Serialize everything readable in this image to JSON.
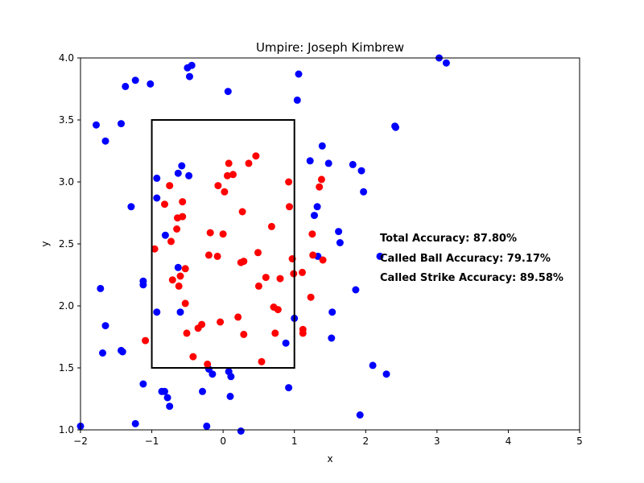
{
  "chart_data": {
    "type": "scatter",
    "title": "Umpire: Joseph Kimbrew",
    "xlabel": "x",
    "ylabel": "y",
    "xlim": [
      -2,
      5
    ],
    "ylim": [
      1.0,
      4.0
    ],
    "x_ticks": [
      "−2",
      "−1",
      "0",
      "1",
      "2",
      "3",
      "4",
      "5"
    ],
    "y_ticks": [
      "1.0",
      "1.5",
      "2.0",
      "2.5",
      "3.0",
      "3.5",
      "4.0"
    ],
    "grid": false,
    "strike_zone": {
      "x": [
        -1,
        1
      ],
      "y": [
        1.5,
        3.5
      ],
      "color": "#000000"
    },
    "annotations": [
      "Total Accuracy: 87.80%",
      "Called Ball Accuracy: 79.17%",
      "Called Strike Accuracy: 89.58%"
    ],
    "series": [
      {
        "color": "#0000ff",
        "points": [
          [
            -2.0,
            1.03
          ],
          [
            -1.78,
            3.46
          ],
          [
            -1.72,
            2.14
          ],
          [
            -1.69,
            1.62
          ],
          [
            -1.65,
            3.33
          ],
          [
            -1.65,
            1.84
          ],
          [
            -1.43,
            3.47
          ],
          [
            -1.43,
            1.64
          ],
          [
            -1.41,
            1.63
          ],
          [
            -1.37,
            3.77
          ],
          [
            -1.29,
            2.8
          ],
          [
            -1.23,
            3.82
          ],
          [
            -1.23,
            1.05
          ],
          [
            -1.12,
            2.2
          ],
          [
            -1.12,
            2.17
          ],
          [
            -1.12,
            1.37
          ],
          [
            -1.02,
            3.79
          ],
          [
            -0.93,
            3.03
          ],
          [
            -0.93,
            2.87
          ],
          [
            -0.93,
            1.95
          ],
          [
            -0.86,
            1.31
          ],
          [
            -0.82,
            1.31
          ],
          [
            -0.81,
            2.57
          ],
          [
            -0.78,
            1.26
          ],
          [
            -0.75,
            1.19
          ],
          [
            -0.63,
            3.07
          ],
          [
            -0.63,
            2.31
          ],
          [
            -0.6,
            1.95
          ],
          [
            -0.58,
            3.13
          ],
          [
            -0.5,
            3.92
          ],
          [
            -0.48,
            3.05
          ],
          [
            -0.47,
            3.85
          ],
          [
            -0.44,
            3.94
          ],
          [
            -0.29,
            1.31
          ],
          [
            -0.23,
            1.03
          ],
          [
            -0.2,
            1.49
          ],
          [
            -0.15,
            1.45
          ],
          [
            0.07,
            3.73
          ],
          [
            0.08,
            1.47
          ],
          [
            0.1,
            1.27
          ],
          [
            0.11,
            1.43
          ],
          [
            0.25,
            0.99
          ],
          [
            0.88,
            1.7
          ],
          [
            0.92,
            1.34
          ],
          [
            1.0,
            1.9
          ],
          [
            1.04,
            3.66
          ],
          [
            1.06,
            3.87
          ],
          [
            1.22,
            3.17
          ],
          [
            1.28,
            2.73
          ],
          [
            1.32,
            2.8
          ],
          [
            1.33,
            2.4
          ],
          [
            1.39,
            3.29
          ],
          [
            1.48,
            3.15
          ],
          [
            1.52,
            1.74
          ],
          [
            1.53,
            1.95
          ],
          [
            1.62,
            2.6
          ],
          [
            1.64,
            2.51
          ],
          [
            1.82,
            3.14
          ],
          [
            1.86,
            2.13
          ],
          [
            1.92,
            1.12
          ],
          [
            1.94,
            3.09
          ],
          [
            1.97,
            2.92
          ],
          [
            2.1,
            1.52
          ],
          [
            2.2,
            2.4
          ],
          [
            2.29,
            1.45
          ],
          [
            2.41,
            3.45
          ],
          [
            2.42,
            3.44
          ],
          [
            3.03,
            4.0
          ],
          [
            3.13,
            3.96
          ]
        ]
      },
      {
        "color": "#ff0000",
        "points": [
          [
            -1.09,
            1.72
          ],
          [
            -0.96,
            2.46
          ],
          [
            -0.82,
            2.82
          ],
          [
            -0.75,
            2.97
          ],
          [
            -0.73,
            2.52
          ],
          [
            -0.71,
            2.21
          ],
          [
            -0.65,
            2.62
          ],
          [
            -0.64,
            2.71
          ],
          [
            -0.62,
            2.16
          ],
          [
            -0.6,
            2.24
          ],
          [
            -0.57,
            2.72
          ],
          [
            -0.57,
            2.84
          ],
          [
            -0.53,
            2.02
          ],
          [
            -0.53,
            2.3
          ],
          [
            -0.51,
            1.78
          ],
          [
            -0.42,
            1.59
          ],
          [
            -0.35,
            1.82
          ],
          [
            -0.3,
            1.85
          ],
          [
            -0.22,
            1.53
          ],
          [
            -0.2,
            2.41
          ],
          [
            -0.18,
            2.59
          ],
          [
            -0.08,
            2.4
          ],
          [
            -0.07,
            2.97
          ],
          [
            -0.04,
            1.87
          ],
          [
            0.0,
            2.58
          ],
          [
            0.02,
            2.92
          ],
          [
            0.06,
            3.05
          ],
          [
            0.08,
            3.15
          ],
          [
            0.14,
            3.06
          ],
          [
            0.21,
            1.91
          ],
          [
            0.25,
            2.35
          ],
          [
            0.27,
            2.76
          ],
          [
            0.29,
            2.36
          ],
          [
            0.29,
            1.77
          ],
          [
            0.36,
            3.15
          ],
          [
            0.46,
            3.21
          ],
          [
            0.49,
            2.43
          ],
          [
            0.5,
            2.16
          ],
          [
            0.54,
            1.55
          ],
          [
            0.6,
            2.23
          ],
          [
            0.68,
            2.64
          ],
          [
            0.71,
            1.99
          ],
          [
            0.73,
            1.78
          ],
          [
            0.77,
            1.97
          ],
          [
            0.8,
            2.22
          ],
          [
            0.92,
            3.0
          ],
          [
            0.93,
            2.8
          ],
          [
            0.97,
            2.38
          ],
          [
            0.99,
            2.26
          ],
          [
            1.11,
            2.27
          ],
          [
            1.12,
            1.81
          ],
          [
            1.12,
            1.78
          ],
          [
            1.23,
            2.07
          ],
          [
            1.25,
            2.58
          ],
          [
            1.26,
            2.41
          ],
          [
            1.35,
            2.96
          ],
          [
            1.38,
            3.02
          ],
          [
            1.4,
            2.37
          ]
        ]
      }
    ]
  }
}
